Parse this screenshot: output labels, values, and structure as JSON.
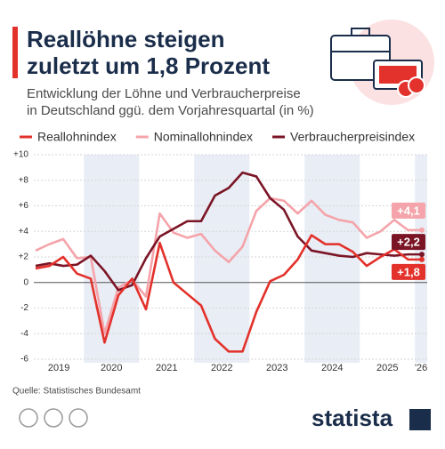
{
  "chart_data": {
    "type": "line",
    "title": [
      "Reallöhne steigen",
      "zuletzt um 1,8 Prozent"
    ],
    "subtitle": [
      "Entwicklung der Löhne und Verbraucherpreise",
      "in Deutschland ggü. dem Vorjahresquartal (in %)"
    ],
    "source": "Quelle: Statistisches Bundesamt",
    "brand": "statista",
    "years": [
      "2019",
      "2020",
      "2021",
      "2022",
      "2023",
      "2024",
      "2025",
      "'26"
    ],
    "series": [
      {
        "name": "Reallohnindex",
        "color": "#e3312b",
        "values": [
          1.1,
          1.3,
          2.0,
          0.7,
          0.3,
          -4.7,
          -1.0,
          0.3,
          -2.1,
          3.1,
          0.0,
          -0.9,
          -1.8,
          -4.4,
          -5.4,
          -5.4,
          -2.3,
          0.1,
          0.6,
          1.8,
          3.7,
          3.0,
          3.0,
          2.4,
          1.3,
          2.0,
          2.6,
          1.8,
          1.8
        ],
        "value_labels": [
          null,
          null,
          null,
          null,
          null,
          null,
          null,
          null,
          null,
          null,
          null,
          null,
          null,
          null,
          null,
          null,
          null,
          null,
          null,
          null,
          null,
          null,
          null,
          null,
          null,
          null,
          null,
          null,
          "+1,8"
        ]
      },
      {
        "name": "Nominallohnindex",
        "color": "#f4a4aa",
        "values": [
          2.5,
          3.0,
          3.4,
          1.9,
          2.0,
          -4.0,
          -0.4,
          0.2,
          -1.1,
          5.4,
          3.9,
          3.5,
          3.8,
          2.5,
          1.6,
          2.8,
          5.6,
          6.6,
          6.4,
          5.4,
          6.4,
          5.3,
          4.9,
          4.7,
          3.5,
          4.0,
          4.9,
          4.1,
          4.1
        ],
        "value_labels": [
          null,
          null,
          null,
          null,
          null,
          null,
          null,
          null,
          null,
          null,
          null,
          null,
          null,
          null,
          null,
          null,
          null,
          null,
          null,
          null,
          null,
          null,
          null,
          null,
          null,
          null,
          null,
          null,
          "+4,1"
        ]
      },
      {
        "name": "Verbraucherpreisindex",
        "color": "#7b1526",
        "values": [
          1.3,
          1.5,
          1.3,
          1.4,
          2.1,
          0.9,
          -0.6,
          -0.2,
          1.9,
          3.6,
          4.2,
          4.8,
          4.8,
          6.8,
          7.4,
          8.6,
          8.3,
          6.6,
          5.7,
          3.6,
          2.5,
          2.3,
          2.1,
          2.0,
          2.3,
          2.2,
          2.1,
          2.2,
          2.2
        ],
        "value_labels": [
          null,
          null,
          null,
          null,
          null,
          null,
          null,
          null,
          null,
          null,
          null,
          null,
          null,
          null,
          null,
          null,
          null,
          null,
          null,
          null,
          null,
          null,
          null,
          null,
          null,
          null,
          null,
          null,
          "+2,2"
        ]
      }
    ],
    "ylim": [
      -6,
      10
    ],
    "yticks": [
      {
        "value": 10,
        "label": "+10"
      },
      {
        "value": 8,
        "label": "+8"
      },
      {
        "value": 6,
        "label": "+6"
      },
      {
        "value": 4,
        "label": "+4"
      },
      {
        "value": 2,
        "label": "+2"
      },
      0,
      -2,
      -4,
      -6
    ],
    "grid": true
  }
}
